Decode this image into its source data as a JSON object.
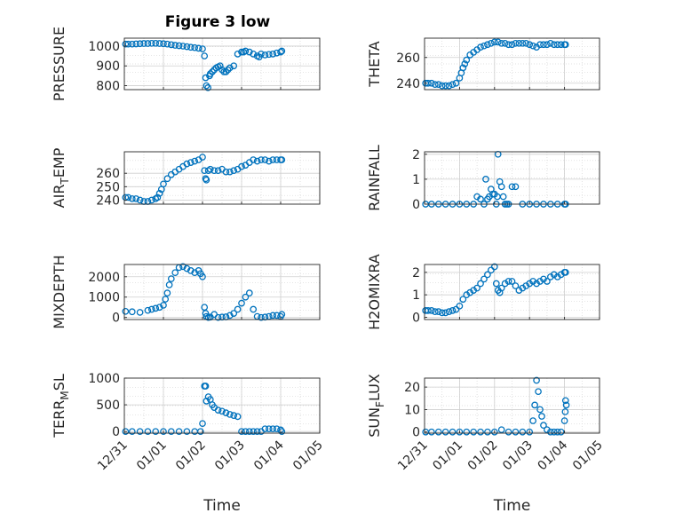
{
  "figure": {
    "title": "Figure 3 low"
  },
  "chart_data": [
    {
      "type": "scatter",
      "ylabel": "PRESSURE",
      "xlabel": "",
      "xlim": [
        0,
        5
      ],
      "ylim": [
        780,
        1040
      ],
      "yticks": [
        800,
        900,
        1000
      ],
      "x": [
        0.03,
        0.1,
        0.2,
        0.3,
        0.4,
        0.5,
        0.6,
        0.7,
        0.8,
        0.9,
        1.0,
        1.1,
        1.2,
        1.3,
        1.4,
        1.5,
        1.6,
        1.7,
        1.8,
        1.9,
        2.0,
        2.05,
        2.08,
        2.1,
        2.14,
        2.18,
        2.2,
        2.25,
        2.3,
        2.35,
        2.4,
        2.45,
        2.5,
        2.55,
        2.6,
        2.65,
        2.7,
        2.8,
        2.9,
        3.0,
        3.05,
        3.1,
        3.2,
        3.3,
        3.4,
        3.45,
        3.5,
        3.6,
        3.7,
        3.8,
        3.9,
        4.0,
        4.03
      ],
      "y": [
        1010,
        1010,
        1010,
        1011,
        1012,
        1013,
        1013,
        1014,
        1014,
        1013,
        1012,
        1010,
        1007,
        1004,
        1002,
        1000,
        997,
        994,
        992,
        989,
        986,
        950,
        840,
        800,
        790,
        850,
        860,
        870,
        880,
        890,
        895,
        900,
        880,
        870,
        870,
        880,
        890,
        900,
        960,
        970,
        970,
        975,
        970,
        960,
        950,
        945,
        960,
        955,
        958,
        960,
        965,
        970,
        975
      ],
      "marker_color": "#0072BD"
    },
    {
      "type": "scatter",
      "ylabel": "THETA",
      "xlabel": "",
      "xlim": [
        0,
        5
      ],
      "ylim": [
        235,
        275
      ],
      "yticks": [
        240,
        260
      ],
      "x": [
        0.03,
        0.1,
        0.2,
        0.3,
        0.4,
        0.5,
        0.6,
        0.7,
        0.8,
        0.9,
        1.0,
        1.05,
        1.1,
        1.15,
        1.2,
        1.3,
        1.4,
        1.5,
        1.6,
        1.7,
        1.8,
        1.9,
        2.0,
        2.1,
        2.2,
        2.3,
        2.4,
        2.5,
        2.6,
        2.7,
        2.8,
        2.9,
        3.0,
        3.1,
        3.2,
        3.3,
        3.4,
        3.5,
        3.6,
        3.7,
        3.8,
        3.9,
        4.0,
        4.03
      ],
      "y": [
        240,
        240,
        240,
        239,
        239,
        238,
        238,
        238,
        239,
        240,
        244,
        248,
        252,
        255,
        258,
        262,
        264,
        266,
        268,
        269,
        270,
        271,
        272,
        272,
        271,
        271,
        270,
        270,
        271,
        271,
        271,
        271,
        270,
        269,
        268,
        270,
        270,
        270,
        271,
        270,
        270,
        270,
        270,
        270
      ],
      "marker_color": "#0072BD"
    },
    {
      "type": "scatter",
      "ylabel": "AIR_TEMP",
      "xlabel": "",
      "xlim": [
        0,
        5
      ],
      "ylim": [
        237,
        276
      ],
      "yticks": [
        240,
        250,
        260
      ],
      "x": [
        0.03,
        0.1,
        0.2,
        0.3,
        0.4,
        0.5,
        0.6,
        0.7,
        0.8,
        0.85,
        0.9,
        0.95,
        1.0,
        1.1,
        1.2,
        1.3,
        1.4,
        1.5,
        1.6,
        1.7,
        1.8,
        1.9,
        2.0,
        2.05,
        2.08,
        2.1,
        2.15,
        2.2,
        2.3,
        2.4,
        2.5,
        2.6,
        2.7,
        2.8,
        2.9,
        3.0,
        3.1,
        3.2,
        3.3,
        3.4,
        3.5,
        3.6,
        3.7,
        3.8,
        3.9,
        4.0,
        4.03
      ],
      "y": [
        242,
        242,
        241,
        241,
        240,
        239,
        239,
        240,
        241,
        242,
        245,
        248,
        252,
        256,
        259,
        261,
        263,
        265,
        267,
        268,
        269,
        270,
        272,
        262,
        256,
        255,
        262,
        263,
        262,
        262,
        263,
        261,
        261,
        262,
        263,
        265,
        266,
        268,
        270,
        269,
        270,
        270,
        269,
        270,
        270,
        270,
        270
      ],
      "marker_color": "#0072BD"
    },
    {
      "type": "scatter",
      "ylabel": "RAINFALL",
      "xlabel": "",
      "xlim": [
        0,
        5
      ],
      "ylim": [
        0,
        2.1
      ],
      "yticks": [
        0,
        1,
        2
      ],
      "x": [
        0.03,
        0.2,
        0.4,
        0.6,
        0.8,
        1.0,
        1.2,
        1.4,
        1.5,
        1.6,
        1.7,
        1.75,
        1.8,
        1.85,
        1.9,
        1.95,
        2.0,
        2.05,
        2.08,
        2.1,
        2.15,
        2.2,
        2.25,
        2.3,
        2.35,
        2.4,
        2.5,
        2.6,
        2.8,
        3.0,
        3.2,
        3.4,
        3.6,
        3.8,
        4.0,
        4.03
      ],
      "y": [
        0,
        0,
        0,
        0,
        0,
        0,
        0,
        0,
        0.3,
        0.2,
        0,
        1.0,
        0.2,
        0.3,
        0.6,
        0.4,
        0.4,
        0,
        0.3,
        2.0,
        0.9,
        0.7,
        0.3,
        0,
        0,
        0,
        0.7,
        0.7,
        0,
        0,
        0,
        0,
        0,
        0,
        0,
        0
      ],
      "marker_color": "#0072BD"
    },
    {
      "type": "scatter",
      "ylabel": "MIXDEPTH",
      "xlabel": "",
      "xlim": [
        0,
        5
      ],
      "ylim": [
        -100,
        2600
      ],
      "yticks": [
        0,
        1000,
        2000
      ],
      "x": [
        0.03,
        0.2,
        0.4,
        0.6,
        0.7,
        0.8,
        0.9,
        1.0,
        1.05,
        1.1,
        1.15,
        1.2,
        1.3,
        1.4,
        1.5,
        1.6,
        1.7,
        1.8,
        1.9,
        1.95,
        2.0,
        2.05,
        2.08,
        2.1,
        2.15,
        2.2,
        2.3,
        2.4,
        2.5,
        2.6,
        2.7,
        2.8,
        2.9,
        3.0,
        3.1,
        3.2,
        3.3,
        3.4,
        3.5,
        3.6,
        3.7,
        3.8,
        3.9,
        4.0,
        4.03
      ],
      "y": [
        300,
        280,
        250,
        350,
        400,
        450,
        500,
        600,
        900,
        1200,
        1600,
        1900,
        2200,
        2450,
        2500,
        2400,
        2300,
        2200,
        2300,
        2150,
        2000,
        500,
        200,
        50,
        0,
        20,
        150,
        0,
        20,
        30,
        100,
        200,
        400,
        700,
        1000,
        1200,
        400,
        50,
        0,
        20,
        50,
        100,
        100,
        50,
        150
      ],
      "marker_color": "#0072BD"
    },
    {
      "type": "scatter",
      "ylabel": "H2OMIXRA",
      "xlabel": "",
      "xlim": [
        0,
        5
      ],
      "ylim": [
        -0.1,
        2.35
      ],
      "yticks": [
        0,
        1,
        2
      ],
      "x": [
        0.03,
        0.1,
        0.2,
        0.3,
        0.4,
        0.5,
        0.6,
        0.7,
        0.8,
        0.9,
        1.0,
        1.1,
        1.2,
        1.3,
        1.4,
        1.5,
        1.6,
        1.7,
        1.8,
        1.9,
        2.0,
        2.05,
        2.1,
        2.15,
        2.2,
        2.3,
        2.4,
        2.5,
        2.6,
        2.7,
        2.8,
        2.9,
        3.0,
        3.1,
        3.2,
        3.3,
        3.4,
        3.5,
        3.6,
        3.7,
        3.8,
        3.9,
        4.0,
        4.03
      ],
      "y": [
        0.3,
        0.3,
        0.3,
        0.25,
        0.25,
        0.2,
        0.2,
        0.25,
        0.3,
        0.35,
        0.5,
        0.8,
        1.0,
        1.1,
        1.2,
        1.3,
        1.5,
        1.7,
        1.9,
        2.1,
        2.25,
        1.5,
        1.2,
        1.1,
        1.3,
        1.5,
        1.6,
        1.6,
        1.4,
        1.2,
        1.3,
        1.4,
        1.5,
        1.6,
        1.5,
        1.6,
        1.7,
        1.6,
        1.8,
        1.9,
        1.8,
        1.9,
        2.0,
        2.0
      ],
      "marker_color": "#0072BD"
    },
    {
      "type": "scatter",
      "ylabel": "TERR_MSL",
      "xlabel": "Time",
      "xlim": [
        0,
        5
      ],
      "ylim": [
        -30,
        1000
      ],
      "yticks": [
        0,
        500,
        1000
      ],
      "xticks": [
        "12/31",
        "01/01",
        "01/02",
        "01/03",
        "01/04",
        "01/05"
      ],
      "x": [
        0.03,
        0.2,
        0.4,
        0.6,
        0.8,
        1.0,
        1.2,
        1.4,
        1.6,
        1.8,
        1.95,
        2.0,
        2.05,
        2.08,
        2.1,
        2.15,
        2.2,
        2.25,
        2.3,
        2.4,
        2.5,
        2.6,
        2.7,
        2.8,
        2.9,
        3.0,
        3.1,
        3.2,
        3.3,
        3.4,
        3.5,
        3.6,
        3.7,
        3.8,
        3.9,
        4.0,
        4.03
      ],
      "y": [
        0,
        0,
        0,
        0,
        0,
        0,
        0,
        0,
        0,
        0,
        0,
        150,
        850,
        850,
        570,
        650,
        600,
        500,
        450,
        400,
        380,
        350,
        320,
        300,
        280,
        0,
        0,
        0,
        0,
        0,
        0,
        50,
        50,
        50,
        50,
        30,
        0
      ],
      "marker_color": "#0072BD"
    },
    {
      "type": "scatter",
      "ylabel": "SUN_FLUX",
      "xlabel": "Time",
      "xlim": [
        0,
        5
      ],
      "ylim": [
        -0.5,
        24
      ],
      "yticks": [
        0,
        10,
        20
      ],
      "xticks": [
        "12/31",
        "01/01",
        "01/02",
        "01/03",
        "01/04",
        "01/05"
      ],
      "x": [
        0.03,
        0.2,
        0.4,
        0.6,
        0.8,
        1.0,
        1.2,
        1.4,
        1.6,
        1.8,
        2.0,
        2.2,
        2.4,
        2.6,
        2.8,
        3.0,
        3.1,
        3.15,
        3.2,
        3.25,
        3.3,
        3.35,
        3.4,
        3.5,
        3.6,
        3.7,
        3.8,
        3.9,
        4.0,
        4.02,
        4.03,
        4.05
      ],
      "y": [
        0,
        0,
        0,
        0,
        0,
        0,
        0,
        0,
        0,
        0,
        0,
        1.0,
        0,
        0,
        0,
        0,
        5,
        12,
        23,
        18,
        10,
        7,
        3,
        1,
        0,
        0,
        0,
        0,
        5,
        9,
        14,
        12
      ],
      "marker_color": "#0072BD"
    }
  ]
}
